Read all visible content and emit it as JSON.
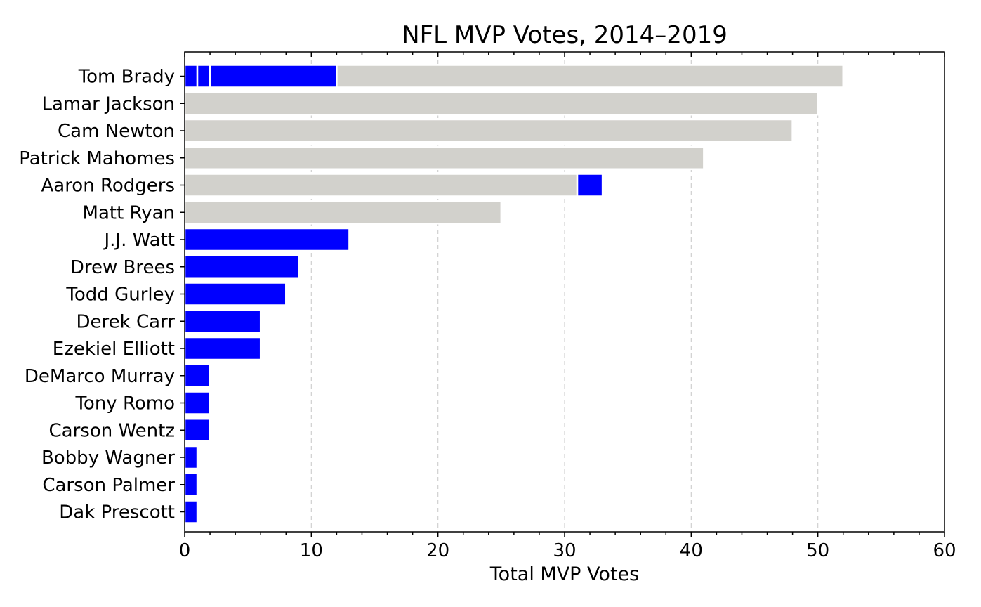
{
  "chart_data": {
    "type": "bar",
    "orientation": "horizontal",
    "stacked": true,
    "title": "NFL MVP Votes, 2014–2019",
    "xlabel": "Total MVP Votes",
    "ylabel": "",
    "xlim": [
      0,
      60
    ],
    "xticks": [
      0,
      10,
      20,
      30,
      40,
      50,
      60
    ],
    "grid": "x, dashed",
    "legend": "none",
    "categories": [
      "Tom Brady",
      "Lamar Jackson",
      "Cam Newton",
      "Patrick Mahomes",
      "Aaron Rodgers",
      "Matt Ryan",
      "J.J. Watt",
      "Drew Brees",
      "Todd Gurley",
      "Derek Carr",
      "Ezekiel Elliott",
      "DeMarco Murray",
      "Tony Romo",
      "Carson Wentz",
      "Bobby Wagner",
      "Carson Palmer",
      "Dak Prescott"
    ],
    "colors": {
      "winner": "#d2d1cc",
      "other": "#0000ff"
    },
    "segments": [
      [
        {
          "value": 1,
          "kind": "other"
        },
        {
          "value": 1,
          "kind": "other"
        },
        {
          "value": 10,
          "kind": "other"
        },
        {
          "value": 40,
          "kind": "winner"
        }
      ],
      [
        {
          "value": 50,
          "kind": "winner"
        }
      ],
      [
        {
          "value": 48,
          "kind": "winner"
        }
      ],
      [
        {
          "value": 41,
          "kind": "winner"
        }
      ],
      [
        {
          "value": 31,
          "kind": "winner"
        },
        {
          "value": 2,
          "kind": "other"
        }
      ],
      [
        {
          "value": 25,
          "kind": "winner"
        }
      ],
      [
        {
          "value": 13,
          "kind": "other"
        }
      ],
      [
        {
          "value": 9,
          "kind": "other"
        }
      ],
      [
        {
          "value": 8,
          "kind": "other"
        }
      ],
      [
        {
          "value": 6,
          "kind": "other"
        }
      ],
      [
        {
          "value": 6,
          "kind": "other"
        }
      ],
      [
        {
          "value": 2,
          "kind": "other"
        }
      ],
      [
        {
          "value": 2,
          "kind": "other"
        }
      ],
      [
        {
          "value": 2,
          "kind": "other"
        }
      ],
      [
        {
          "value": 1,
          "kind": "other"
        }
      ],
      [
        {
          "value": 1,
          "kind": "other"
        }
      ],
      [
        {
          "value": 1,
          "kind": "other"
        }
      ]
    ]
  }
}
